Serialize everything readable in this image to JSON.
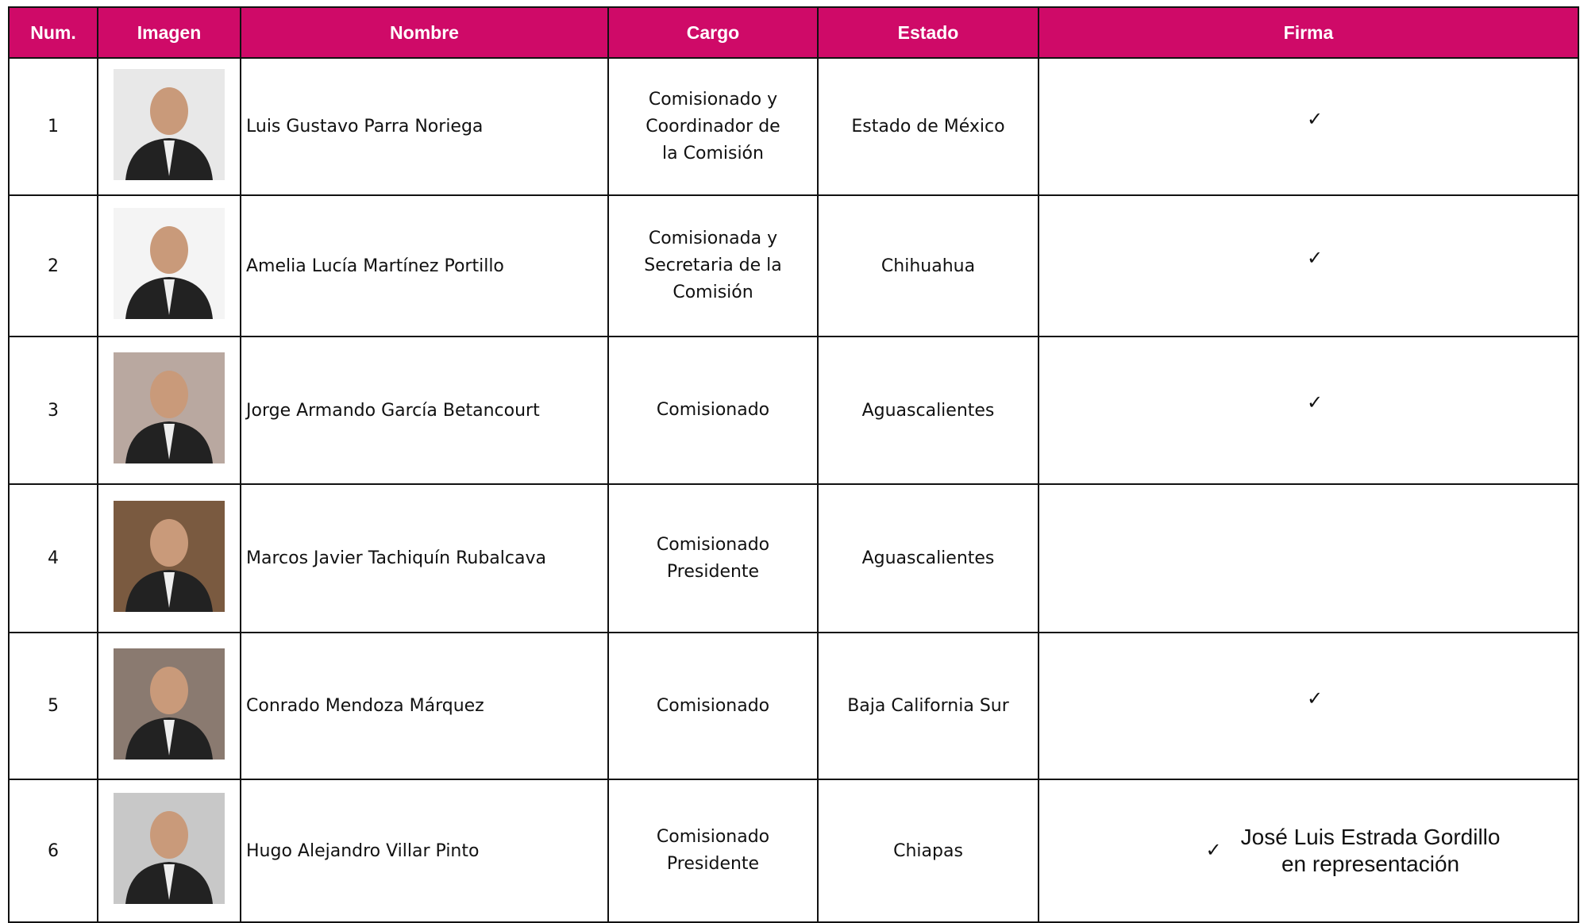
{
  "table": {
    "header": [
      "Num.",
      "Imagen",
      "Nombre",
      "Cargo",
      "Estado",
      "Firma"
    ],
    "rows": [
      {
        "num": "1",
        "name": "Luis Gustavo Parra Noriega",
        "cargo": "Comisionado y Coordinador de la Comisión",
        "estado": "Estado de México",
        "check": "✓"
      },
      {
        "num": "2",
        "name": "Amelia Lucía Martínez Portillo",
        "cargo": "Comisionada y Secretaria de la Comisión",
        "estado": "Chihuahua",
        "check": "✓"
      },
      {
        "num": "3",
        "name": "Jorge Armando García Betancourt",
        "cargo": "Comisionado",
        "estado": "Aguascalientes",
        "check": "✓"
      },
      {
        "num": "4",
        "name": "Marcos Javier Tachiquín Rubalcava",
        "cargo": "Comisionado Presidente",
        "estado": "Aguascalientes"
      },
      {
        "num": "5",
        "name": "Conrado Mendoza Márquez",
        "cargo": "Comisionado",
        "estado": "Baja California Sur",
        "check": "✓"
      },
      {
        "num": "6",
        "name": "Hugo Alejandro Villar Pinto",
        "cargo": "Comisionado Presidente",
        "estado": "Chiapas",
        "check": "✓",
        "note": [
          "José Luis Estrada Gordillo",
          "en representación"
        ]
      }
    ]
  }
}
